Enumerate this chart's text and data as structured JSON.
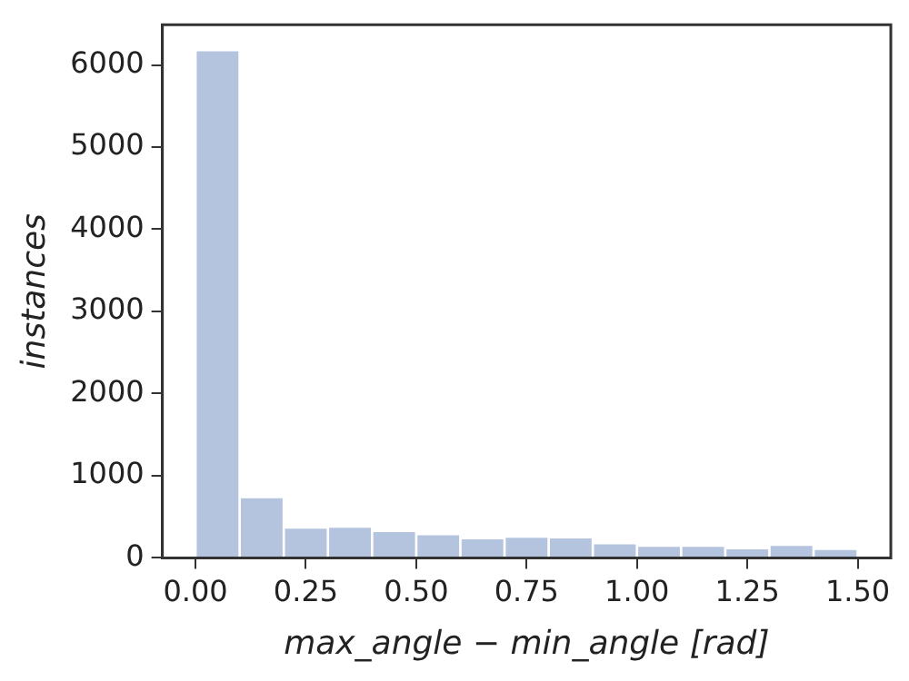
{
  "chart_data": {
    "type": "histogram",
    "xlabel": "max_angle − min_angle [rad]",
    "ylabel": "instances",
    "bins": [
      0,
      0.1,
      0.2,
      0.3,
      0.4,
      0.5,
      0.6,
      0.7,
      0.8,
      0.9,
      1.0,
      1.1,
      1.2,
      1.3,
      1.4,
      1.5
    ],
    "values": [
      6180,
      740,
      370,
      380,
      330,
      290,
      240,
      260,
      250,
      180,
      150,
      150,
      120,
      160,
      110
    ],
    "color": "#b4c4df",
    "xlim": [
      -0.075,
      1.575
    ],
    "xticks": [
      {
        "value": 0,
        "label": "0.00"
      },
      {
        "value": 0.25,
        "label": "0.25"
      },
      {
        "value": 0.5,
        "label": "0.50"
      },
      {
        "value": 0.75,
        "label": "0.75"
      },
      {
        "value": 1,
        "label": "1.00"
      },
      {
        "value": 1.25,
        "label": "1.25"
      },
      {
        "value": 1.5,
        "label": "1.50"
      }
    ],
    "ylim": [
      0,
      6490
    ],
    "yticks": [
      0,
      1000,
      2000,
      3000,
      4000,
      5000,
      6000
    ],
    "grid": false,
    "legend": false
  }
}
